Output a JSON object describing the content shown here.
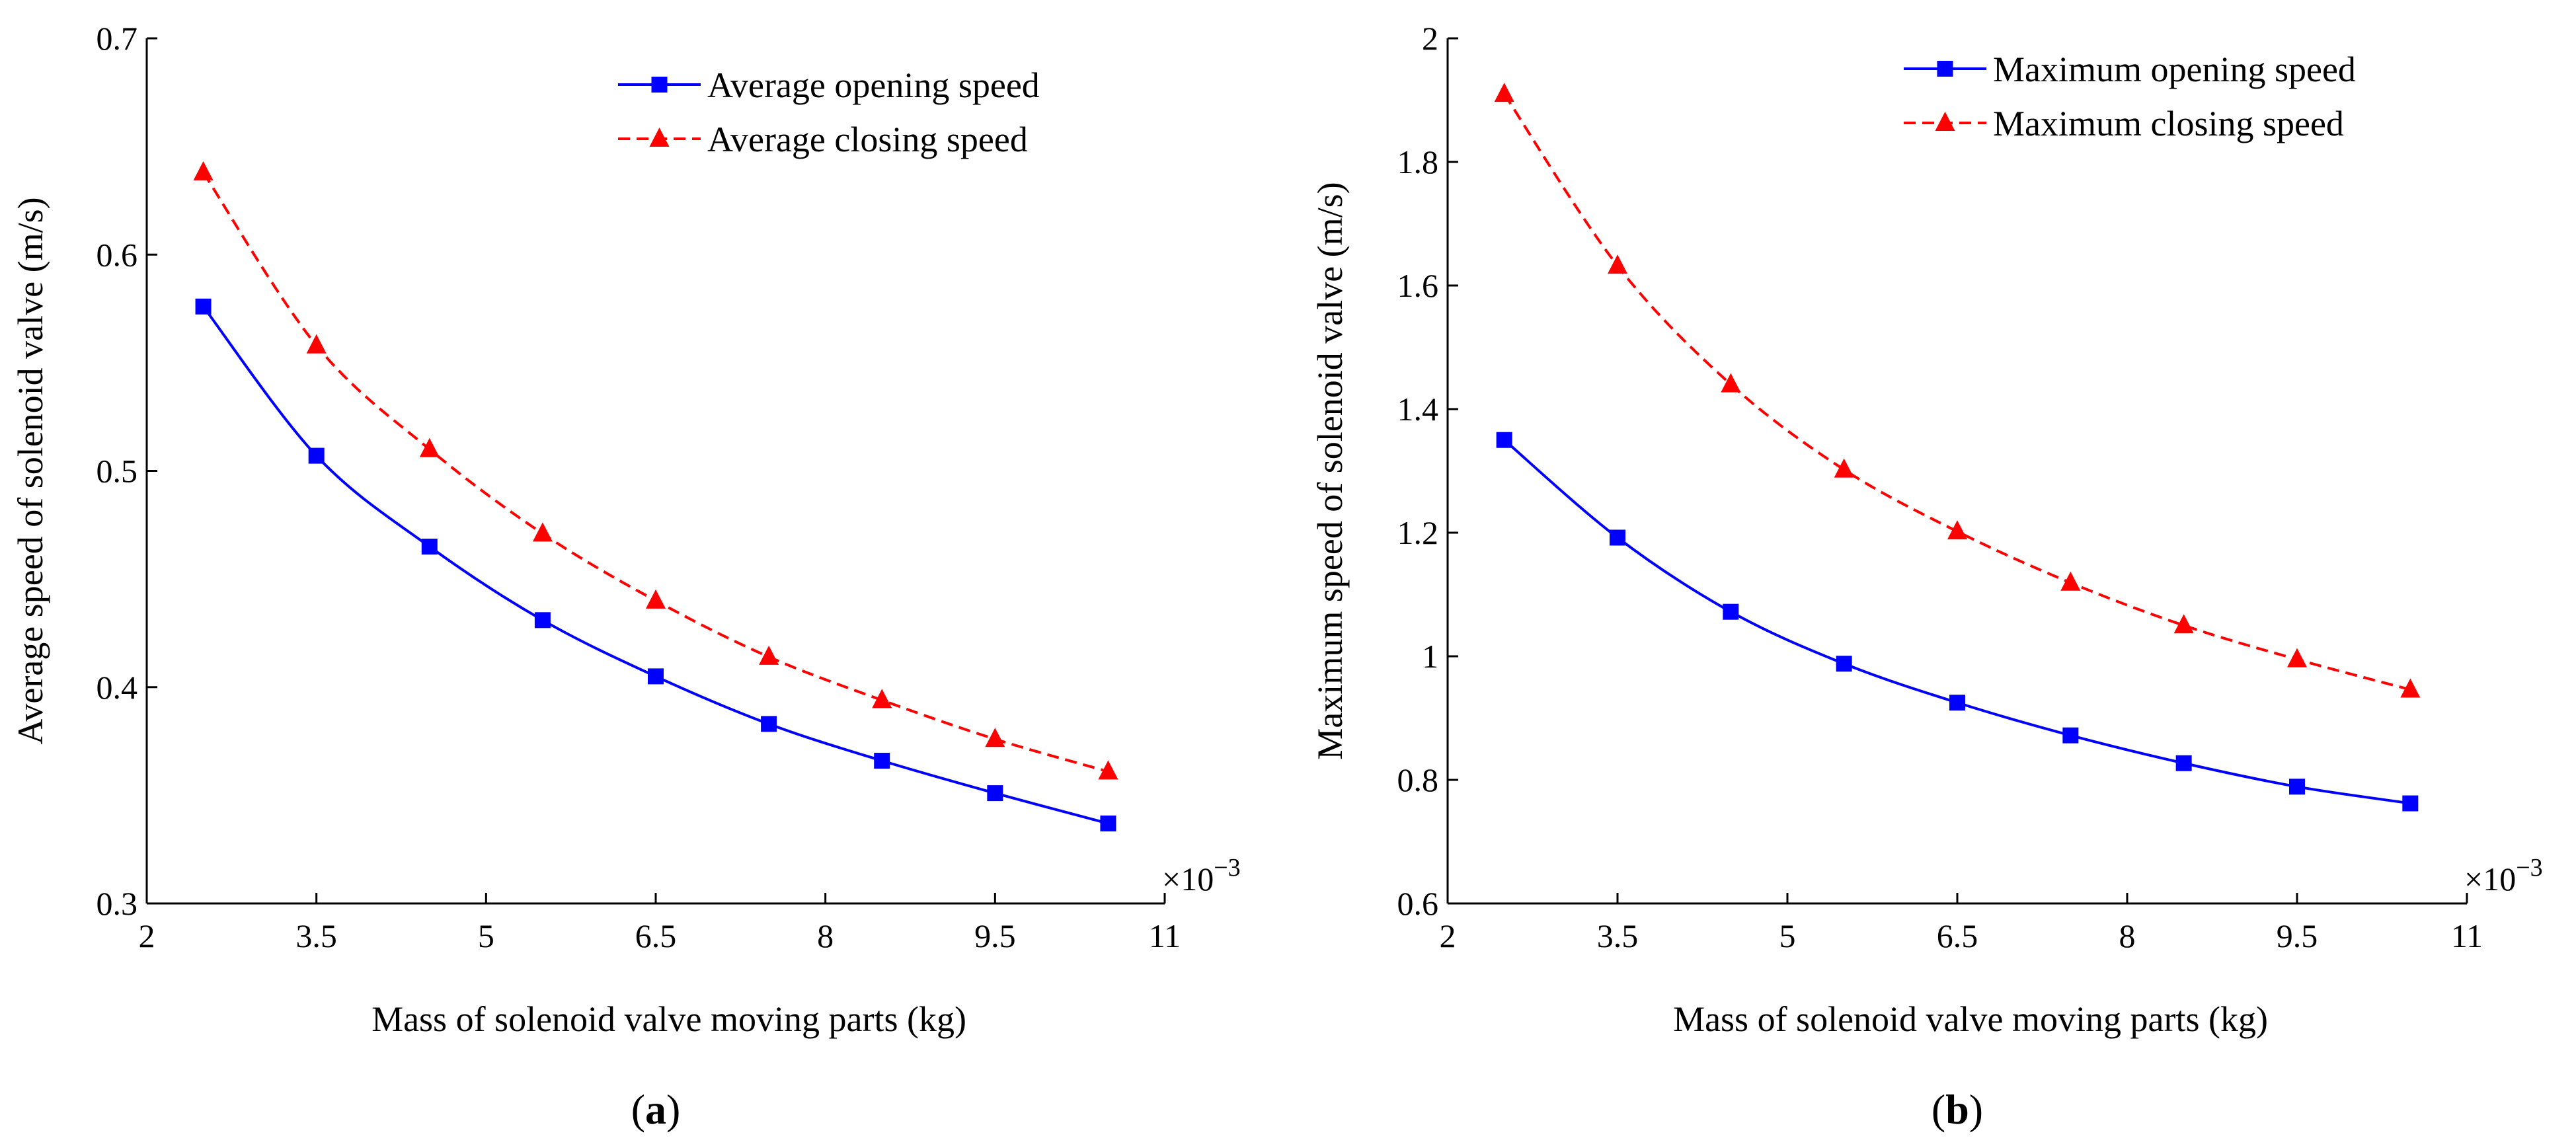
{
  "chart_data": [
    {
      "type": "line",
      "panel": "a",
      "panel_label": {
        "open": "(",
        "letter": "a",
        "close": ")"
      },
      "title": "",
      "xlabel": "Mass of solenoid valve moving parts (kg)",
      "ylabel": "Average speed of solenoid valve (m/s)",
      "x_scale_label": "×10",
      "x_scale_exp": "−3",
      "xlim": [
        2,
        11
      ],
      "ylim": [
        0.3,
        0.7
      ],
      "xticks": [
        2,
        3.5,
        5,
        6.5,
        8,
        9.5,
        11
      ],
      "xtick_labels": [
        "2",
        "3.5",
        "5",
        "6.5",
        "8",
        "9.5",
        "11"
      ],
      "yticks": [
        0.3,
        0.4,
        0.5,
        0.6,
        0.7
      ],
      "ytick_labels": [
        "0.3",
        "0.4",
        "0.5",
        "0.6",
        "0.7"
      ],
      "legend_position": "top-right",
      "x": [
        2.5,
        3.5,
        4.5,
        5.5,
        6.5,
        7.5,
        8.5,
        9.5,
        10.5
      ],
      "series": [
        {
          "name": "Average opening speed",
          "color": "#0000ff",
          "dash": "solid",
          "marker": "square",
          "values": [
            0.576,
            0.507,
            0.465,
            0.431,
            0.405,
            0.383,
            0.366,
            0.351,
            0.337
          ]
        },
        {
          "name": "Average closing speed",
          "color": "#ff0000",
          "dash": "dashed",
          "marker": "triangle",
          "values": [
            0.638,
            0.558,
            0.51,
            0.471,
            0.44,
            0.414,
            0.394,
            0.376,
            0.361
          ]
        }
      ]
    },
    {
      "type": "line",
      "panel": "b",
      "panel_label": {
        "open": "(",
        "letter": "b",
        "close": ")"
      },
      "title": "",
      "xlabel": "Mass of solenoid valve moving parts (kg)",
      "ylabel": "Maximum speed of solenoid valve (m/s)",
      "x_scale_label": "×10",
      "x_scale_exp": "−3",
      "xlim": [
        2,
        11
      ],
      "ylim": [
        0.6,
        2.0
      ],
      "xticks": [
        2,
        3.5,
        5,
        6.5,
        8,
        9.5,
        11
      ],
      "xtick_labels": [
        "2",
        "3.5",
        "5",
        "6.5",
        "8",
        "9.5",
        "11"
      ],
      "yticks": [
        0.6,
        0.8,
        1.0,
        1.2,
        1.4,
        1.6,
        1.8,
        2.0
      ],
      "ytick_labels": [
        "0.6",
        "0.8",
        "1",
        "1.2",
        "1.4",
        "1.6",
        "1.8",
        "2"
      ],
      "legend_position": "top-right",
      "x": [
        2.5,
        3.5,
        4.5,
        5.5,
        6.5,
        7.5,
        8.5,
        9.5,
        10.5
      ],
      "series": [
        {
          "name": "Maximum opening speed",
          "color": "#0000ff",
          "dash": "solid",
          "marker": "square",
          "values": [
            1.35,
            1.192,
            1.072,
            0.988,
            0.925,
            0.872,
            0.827,
            0.789,
            0.762
          ]
        },
        {
          "name": "Maximum closing speed",
          "color": "#ff0000",
          "dash": "dashed",
          "marker": "triangle",
          "values": [
            1.91,
            1.632,
            1.44,
            1.302,
            1.202,
            1.119,
            1.05,
            0.995,
            0.946
          ]
        }
      ]
    }
  ]
}
